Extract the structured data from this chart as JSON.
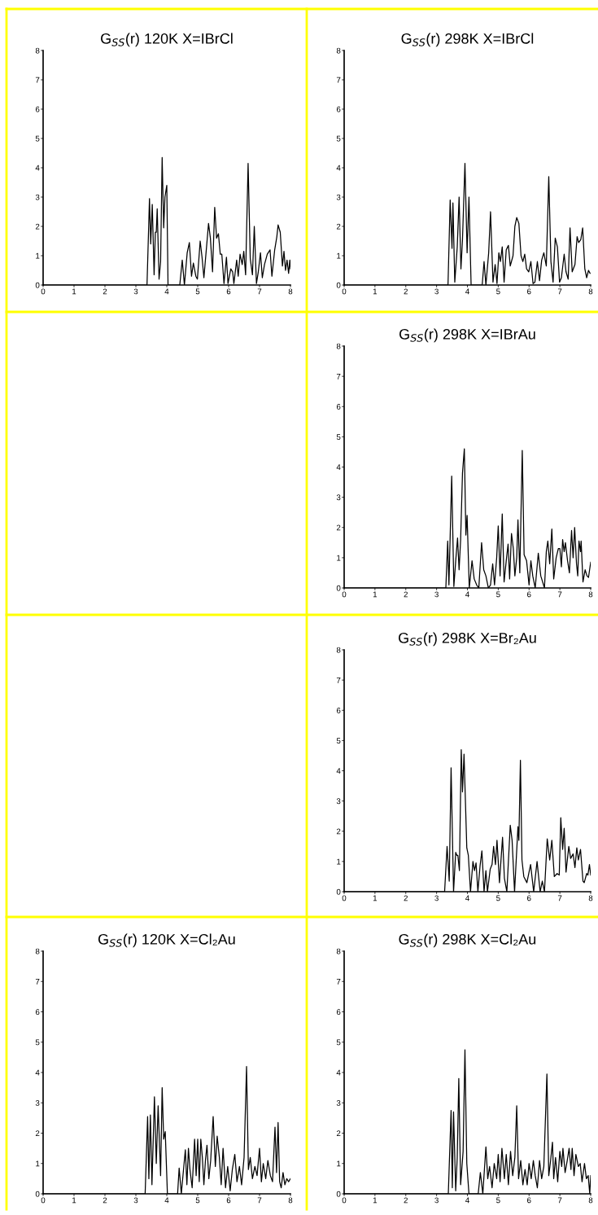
{
  "chart_data": [
    {
      "type": "line",
      "title": "G$_{SS}$(r) 120K X=IBrCl",
      "color": "#000000",
      "xlim": [
        0,
        8
      ],
      "ylim": [
        0,
        8
      ],
      "xticks": [
        0,
        1,
        2,
        3,
        4,
        5,
        6,
        7,
        8
      ],
      "yticks": [
        0,
        1,
        2,
        3,
        4,
        5,
        6,
        7,
        8
      ],
      "x": [
        0,
        3.36,
        3.44,
        3.48,
        3.53,
        3.59,
        3.63,
        3.66,
        3.69,
        3.75,
        3.8,
        3.85,
        3.9,
        3.94,
        4.0,
        4.04,
        4.42,
        4.5,
        4.57,
        4.66,
        4.73,
        4.8,
        4.86,
        4.94,
        4.99,
        5.08,
        5.14,
        5.2,
        5.29,
        5.35,
        5.41,
        5.48,
        5.55,
        5.61,
        5.67,
        5.73,
        5.78,
        5.85,
        5.93,
        5.98,
        6.07,
        6.13,
        6.17,
        6.26,
        6.31,
        6.37,
        6.44,
        6.49,
        6.55,
        6.63,
        6.7,
        6.77,
        6.83,
        6.9,
        6.96,
        7.03,
        7.09,
        7.16,
        7.25,
        7.34,
        7.4,
        7.49,
        7.56,
        7.6,
        7.67,
        7.74,
        7.79,
        7.84,
        7.89,
        7.94,
        7.98,
        8.0
      ],
      "values": [
        0,
        0,
        2.95,
        1.4,
        2.75,
        0.35,
        1.8,
        1.8,
        2.6,
        0.2,
        0.8,
        4.35,
        1.95,
        3.0,
        3.4,
        0,
        0,
        0.85,
        0,
        1.1,
        1.45,
        0.3,
        0.75,
        0.3,
        0.2,
        1.5,
        0.95,
        0.25,
        1.35,
        2.1,
        1.6,
        0.45,
        2.65,
        1.6,
        1.75,
        1.05,
        1.05,
        0.05,
        0.95,
        0.05,
        0.55,
        0.45,
        0.05,
        0.85,
        0.3,
        1.05,
        0.7,
        1.15,
        0.35,
        4.15,
        0.9,
        0.35,
        2.0,
        0.05,
        0.45,
        1.1,
        0.25,
        0.7,
        1.05,
        1.2,
        0.3,
        1.2,
        1.65,
        2.05,
        1.8,
        0.65,
        1.15,
        0.5,
        0.85,
        0.4,
        0.85,
        0.55
      ]
    },
    {
      "type": "line",
      "title": "G$_{SS}$(r) 298K X=IBrCl",
      "color": "#000000",
      "xlim": [
        0,
        8
      ],
      "ylim": [
        0,
        8
      ],
      "xticks": [
        0,
        1,
        2,
        3,
        4,
        5,
        6,
        7,
        8
      ],
      "yticks": [
        0,
        1,
        2,
        3,
        4,
        5,
        6,
        7,
        8
      ],
      "x": [
        0,
        3.37,
        3.44,
        3.5,
        3.53,
        3.59,
        3.67,
        3.73,
        3.79,
        3.84,
        3.92,
        3.99,
        4.05,
        4.12,
        4.48,
        4.54,
        4.6,
        4.69,
        4.75,
        4.83,
        4.9,
        4.96,
        5.02,
        5.07,
        5.13,
        5.19,
        5.26,
        5.33,
        5.39,
        5.48,
        5.54,
        5.6,
        5.67,
        5.74,
        5.8,
        5.86,
        5.92,
        5.99,
        6.06,
        6.13,
        6.19,
        6.27,
        6.34,
        6.41,
        6.48,
        6.56,
        6.64,
        6.71,
        6.78,
        6.85,
        6.92,
        6.99,
        7.05,
        7.14,
        7.2,
        7.27,
        7.33,
        7.4,
        7.49,
        7.56,
        7.61,
        7.68,
        7.74,
        7.81,
        7.87,
        7.93,
        7.98
      ],
      "values": [
        0,
        0,
        2.9,
        1.25,
        2.8,
        0.1,
        1.3,
        3.0,
        0.55,
        1.55,
        4.15,
        1.1,
        3.0,
        0,
        0,
        0.8,
        0,
        1.1,
        2.5,
        0.1,
        0.7,
        0.05,
        1.1,
        0.8,
        1.3,
        0.1,
        1.2,
        1.35,
        0.65,
        1.0,
        2.0,
        2.3,
        2.1,
        1.0,
        0.8,
        1.05,
        0.55,
        0.45,
        0.8,
        0.05,
        0.1,
        0.8,
        0.15,
        0.85,
        1.1,
        0.65,
        3.7,
        0.8,
        0.1,
        1.6,
        1.3,
        0.1,
        0.25,
        1.05,
        0.45,
        0.2,
        1.95,
        0.45,
        0.7,
        1.65,
        1.45,
        1.55,
        1.95,
        0.55,
        0.25,
        0.5,
        0.4
      ]
    },
    {
      "type": "line",
      "title": "G$_{SS}$(r) 298K X=IBrAu",
      "color": "#000000",
      "xlim": [
        0,
        8
      ],
      "ylim": [
        0,
        8
      ],
      "xticks": [
        0,
        1,
        2,
        3,
        4,
        5,
        6,
        7,
        8
      ],
      "yticks": [
        0,
        1,
        2,
        3,
        4,
        5,
        6,
        7,
        8
      ],
      "x": [
        0,
        3.3,
        3.36,
        3.4,
        3.49,
        3.56,
        3.62,
        3.68,
        3.73,
        3.78,
        3.84,
        3.9,
        3.95,
        3.99,
        4.06,
        4.15,
        4.22,
        4.3,
        4.37,
        4.46,
        4.53,
        4.6,
        4.68,
        4.75,
        4.82,
        4.88,
        4.95,
        5.0,
        5.06,
        5.13,
        5.19,
        5.26,
        5.32,
        5.37,
        5.43,
        5.49,
        5.54,
        5.6,
        5.64,
        5.7,
        5.78,
        5.84,
        5.92,
        6.0,
        6.06,
        6.12,
        6.2,
        6.3,
        6.38,
        6.5,
        6.56,
        6.61,
        6.67,
        6.74,
        6.8,
        6.88,
        6.95,
        7.0,
        7.05,
        7.09,
        7.14,
        7.18,
        7.25,
        7.31,
        7.38,
        7.43,
        7.48,
        7.54,
        7.58,
        7.62,
        7.67,
        7.69,
        7.75,
        7.82,
        7.88,
        7.93,
        8.0
      ],
      "values": [
        0,
        0,
        1.55,
        0.1,
        3.7,
        0.05,
        0.9,
        1.65,
        0.6,
        1.6,
        3.8,
        4.6,
        1.75,
        2.4,
        0,
        0.9,
        0.3,
        0.1,
        0,
        1.5,
        0.6,
        0.4,
        0,
        0.1,
        0.8,
        0.1,
        1.0,
        2.05,
        0.4,
        2.45,
        0.2,
        0.9,
        1.45,
        0.3,
        1.8,
        1.3,
        0.4,
        1.0,
        2.25,
        0.5,
        4.55,
        1.1,
        0.9,
        0.1,
        0.9,
        0.4,
        0,
        1.15,
        0.4,
        0,
        1.2,
        1.55,
        0.8,
        1.95,
        0.3,
        1.0,
        1.3,
        1.3,
        0.7,
        1.6,
        1.2,
        1.5,
        0.9,
        0.5,
        1.9,
        1.0,
        2.0,
        0.8,
        0.4,
        1.55,
        1.2,
        1.55,
        0.2,
        0.6,
        0.4,
        0.35,
        0.85
      ]
    },
    {
      "type": "line",
      "title": "G$_{SS}$(r) 298K X=Br₂Au",
      "color": "#000000",
      "xlim": [
        0,
        8
      ],
      "ylim": [
        0,
        8
      ],
      "xticks": [
        0,
        1,
        2,
        3,
        4,
        5,
        6,
        7,
        8
      ],
      "yticks": [
        0,
        1,
        2,
        3,
        4,
        5,
        6,
        7,
        8
      ],
      "x": [
        0,
        3.26,
        3.34,
        3.41,
        3.47,
        3.55,
        3.62,
        3.66,
        3.69,
        3.74,
        3.8,
        3.84,
        3.89,
        3.98,
        4.03,
        4.1,
        4.18,
        4.23,
        4.28,
        4.34,
        4.41,
        4.47,
        4.54,
        4.6,
        4.65,
        4.74,
        4.8,
        4.85,
        4.91,
        4.96,
        5.04,
        5.14,
        5.2,
        5.28,
        5.39,
        5.45,
        5.53,
        5.64,
        5.67,
        5.72,
        5.77,
        5.83,
        5.93,
        6.05,
        6.15,
        6.26,
        6.36,
        6.43,
        6.5,
        6.59,
        6.67,
        6.74,
        6.82,
        6.91,
        6.98,
        7.03,
        7.09,
        7.14,
        7.2,
        7.29,
        7.35,
        7.43,
        7.49,
        7.55,
        7.6,
        7.67,
        7.75,
        7.79,
        7.87,
        7.91,
        7.96,
        8.0
      ],
      "values": [
        0,
        0,
        1.5,
        0.35,
        4.1,
        0,
        1.3,
        1.2,
        1.2,
        0.7,
        4.7,
        3.3,
        4.55,
        1.45,
        1.2,
        0,
        1.0,
        0.7,
        0.95,
        0,
        0.85,
        1.35,
        0,
        0.7,
        0,
        0.75,
        0.9,
        1.5,
        0.9,
        1.7,
        0.3,
        1.8,
        0.45,
        0,
        2.2,
        1.7,
        0,
        2.15,
        1.7,
        4.35,
        1.05,
        0.5,
        0.3,
        0.9,
        0,
        1.0,
        0,
        0.35,
        0,
        1.75,
        1.05,
        1.7,
        0.5,
        0.6,
        0.55,
        2.45,
        1.4,
        2.1,
        0.65,
        1.5,
        1.1,
        1.25,
        0.8,
        1.45,
        1.05,
        1.4,
        0.35,
        0.3,
        0.6,
        0.55,
        0.9,
        0.55
      ]
    },
    {
      "type": "line",
      "title": "G$_{SS}$(r) 120K X=Cl₂Au",
      "color": "#000000",
      "xlim": [
        0,
        8
      ],
      "ylim": [
        0,
        8
      ],
      "xticks": [
        0,
        1,
        2,
        3,
        4,
        5,
        6,
        7,
        8
      ],
      "yticks": [
        0,
        1,
        2,
        3,
        4,
        5,
        6,
        7,
        8
      ],
      "x": [
        0,
        3.3,
        3.38,
        3.42,
        3.47,
        3.52,
        3.6,
        3.66,
        3.72,
        3.8,
        3.85,
        3.9,
        3.95,
        4.02,
        4.35,
        4.4,
        4.47,
        4.55,
        4.6,
        4.65,
        4.7,
        4.75,
        4.82,
        4.9,
        4.95,
        5.0,
        5.05,
        5.1,
        5.15,
        5.2,
        5.25,
        5.3,
        5.36,
        5.42,
        5.5,
        5.57,
        5.63,
        5.7,
        5.76,
        5.82,
        5.9,
        5.97,
        6.05,
        6.12,
        6.2,
        6.27,
        6.35,
        6.42,
        6.5,
        6.58,
        6.64,
        6.7,
        6.77,
        6.85,
        6.92,
        7.0,
        7.06,
        7.12,
        7.2,
        7.27,
        7.35,
        7.42,
        7.5,
        7.55,
        7.6,
        7.65,
        7.7,
        7.76,
        7.82,
        7.88,
        7.94,
        8.0
      ],
      "values": [
        0,
        0,
        2.55,
        0.5,
        2.6,
        0.3,
        3.2,
        1.0,
        2.9,
        0.6,
        3.5,
        1.8,
        2.05,
        0,
        0,
        0.85,
        0,
        0.9,
        1.45,
        0.3,
        1.5,
        0.8,
        0.2,
        1.8,
        0.6,
        1.8,
        0.4,
        1.8,
        1.2,
        0.3,
        1.1,
        1.6,
        0.5,
        1.1,
        2.55,
        0.9,
        1.9,
        1.2,
        0.3,
        1.5,
        0.2,
        0.9,
        0.1,
        0.8,
        1.3,
        0.4,
        0.9,
        0.3,
        1.2,
        4.2,
        0.8,
        1.2,
        0.5,
        0.9,
        0.6,
        1.5,
        0.4,
        1.0,
        0.5,
        1.1,
        0.6,
        0.4,
        2.2,
        0.7,
        2.35,
        0.4,
        0.2,
        0.7,
        0.3,
        0.5,
        0.4,
        0.5
      ]
    },
    {
      "type": "line",
      "title": "G$_{SS}$(r) 298K X=Cl₂Au",
      "color": "#000000",
      "xlim": [
        0,
        8
      ],
      "ylim": [
        0,
        8
      ],
      "xticks": [
        0,
        1,
        2,
        3,
        4,
        5,
        6,
        7,
        8
      ],
      "yticks": [
        0,
        1,
        2,
        3,
        4,
        5,
        6,
        7,
        8
      ],
      "x": [
        0,
        3.38,
        3.47,
        3.51,
        3.55,
        3.62,
        3.67,
        3.72,
        3.78,
        3.86,
        3.92,
        3.98,
        4.05,
        4.35,
        4.42,
        4.5,
        4.6,
        4.66,
        4.72,
        4.8,
        4.87,
        4.95,
        5.0,
        5.06,
        5.12,
        5.2,
        5.26,
        5.33,
        5.4,
        5.47,
        5.54,
        5.6,
        5.66,
        5.73,
        5.8,
        5.87,
        5.94,
        6.0,
        6.07,
        6.14,
        6.2,
        6.27,
        6.34,
        6.41,
        6.48,
        6.58,
        6.64,
        6.7,
        6.76,
        6.8,
        6.86,
        6.93,
        7.0,
        7.06,
        7.1,
        7.17,
        7.24,
        7.3,
        7.36,
        7.4,
        7.46,
        7.52,
        7.6,
        7.66,
        7.72,
        7.8,
        7.86,
        7.92,
        7.97,
        8.0
      ],
      "values": [
        0,
        0,
        2.75,
        0.2,
        2.7,
        0.1,
        1.2,
        3.8,
        0.3,
        1.4,
        4.75,
        1.0,
        0,
        0,
        0.7,
        0,
        1.55,
        0.5,
        0.9,
        0.2,
        1.0,
        0.5,
        1.3,
        0.4,
        1.5,
        0.5,
        1.3,
        0.3,
        1.4,
        0.6,
        1.2,
        2.9,
        0.5,
        1.1,
        0.3,
        0.8,
        0.3,
        1.0,
        0.5,
        1.1,
        0.6,
        0.2,
        1.1,
        0.5,
        0.9,
        3.95,
        0.6,
        1.1,
        1.7,
        0.5,
        1.2,
        0.4,
        1.4,
        0.9,
        1.5,
        0.7,
        1.1,
        1.5,
        0.8,
        1.5,
        0.6,
        1.3,
        0.9,
        1.0,
        0.4,
        1.0,
        0.5,
        0.6,
        0.0,
        0.6
      ]
    }
  ]
}
